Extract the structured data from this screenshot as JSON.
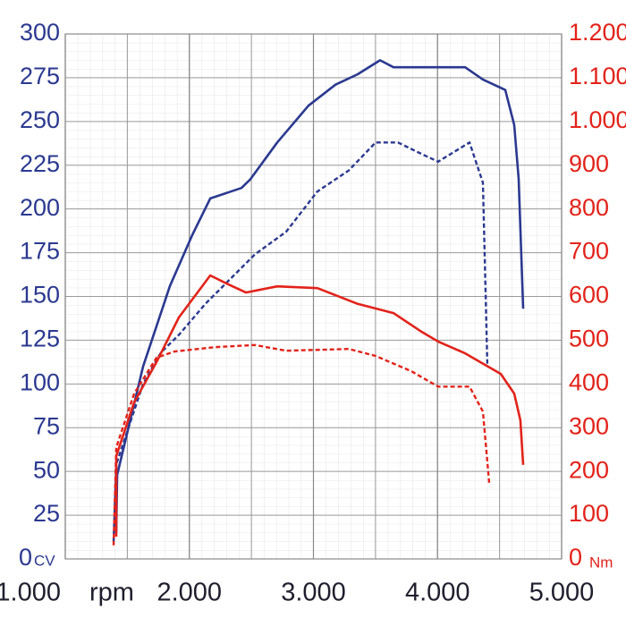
{
  "chart_data": {
    "type": "line",
    "x_label": "rpm",
    "y_label": "CV",
    "y2_label": "Nm",
    "xlim": [
      1000,
      5000
    ],
    "xticks": [
      {
        "value": 1000,
        "label": "1.000"
      },
      {
        "value": 2000,
        "label": "2.000"
      },
      {
        "value": 3000,
        "label": "3.000"
      },
      {
        "value": 4000,
        "label": "4.000"
      },
      {
        "value": 5000,
        "label": "5.000"
      }
    ],
    "ylim": [
      0,
      300
    ],
    "yticks": [
      0,
      25,
      50,
      75,
      100,
      125,
      150,
      175,
      200,
      225,
      250,
      275,
      300
    ],
    "y2lim": [
      0,
      1200
    ],
    "y2ticks": [
      0,
      100,
      200,
      300,
      400,
      500,
      600,
      700,
      800,
      900,
      {
        "value": 1000,
        "label": "1.000"
      },
      {
        "value": 1100,
        "label": "1.100"
      },
      {
        "value": 1200,
        "label": "1.200"
      }
    ],
    "grid": true,
    "series": [
      {
        "color": "#2b3990",
        "style": "solid",
        "axis": "y",
        "x": [
          1411,
          1418,
          1627,
          1843,
          2023,
          2168,
          2420,
          2492,
          2708,
          2960,
          3177,
          3357,
          3537,
          3645,
          3861,
          4222,
          4366,
          4546,
          4618,
          4654,
          4690
        ],
        "values": [
          15,
          48,
          110,
          156,
          185,
          206,
          212,
          217,
          238,
          259,
          271,
          277,
          285,
          281,
          281,
          281,
          274,
          268,
          248,
          217,
          143
        ]
      },
      {
        "color": "#2b3990",
        "style": "dashed",
        "axis": "y",
        "x": [
          1389,
          1411,
          1627,
          1771,
          1915,
          2132,
          2528,
          2780,
          3032,
          3285,
          3501,
          3681,
          3825,
          4005,
          4258,
          4366,
          4402
        ],
        "values": [
          10,
          54,
          100,
          118,
          128,
          146,
          174,
          187,
          210,
          222,
          238,
          238,
          233,
          227,
          238,
          215,
          110
        ]
      },
      {
        "color": "#e2231a",
        "style": "solid",
        "axis": "y2",
        "x": [
          1411,
          1411,
          1555,
          1735,
          1915,
          2168,
          2312,
          2456,
          2708,
          3032,
          3357,
          3645,
          3861,
          4005,
          4222,
          4510,
          4618,
          4668,
          4690
        ],
        "values": [
          51,
          235,
          358,
          450,
          552,
          648,
          628,
          609,
          623,
          619,
          583,
          562,
          521,
          497,
          470,
          423,
          378,
          317,
          215
        ]
      },
      {
        "color": "#e2231a",
        "style": "dashed",
        "axis": "y2",
        "x": [
          1389,
          1411,
          1555,
          1735,
          1879,
          2204,
          2528,
          2780,
          3285,
          3501,
          3789,
          4005,
          4258,
          4366,
          4416
        ],
        "values": [
          31,
          255,
          378,
          460,
          474,
          484,
          489,
          476,
          480,
          464,
          429,
          394,
          394,
          337,
          174
        ]
      }
    ]
  }
}
